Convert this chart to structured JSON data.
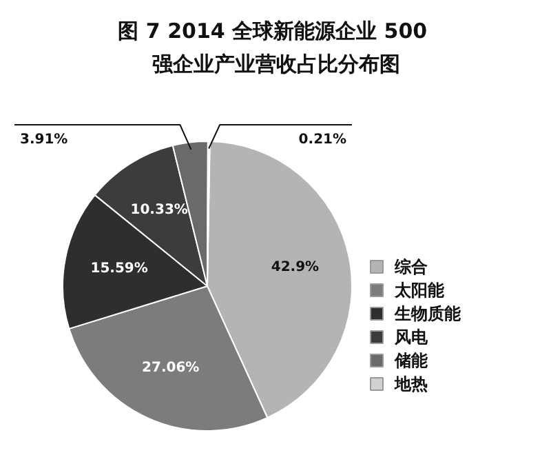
{
  "chart_data": {
    "type": "pie",
    "title": "图 7  2014 全球新能源企业 500 强企业产业营收占比分布图",
    "categories": [
      "综合",
      "太阳能",
      "生物质能",
      "风电",
      "储能",
      "地热"
    ],
    "values": [
      42.9,
      27.06,
      15.59,
      10.33,
      3.91,
      0.21
    ],
    "value_labels": [
      "42.9%",
      "27.06%",
      "15.59%",
      "10.33%",
      "3.91%",
      "0.21%"
    ],
    "colors": [
      "#b4b4b4",
      "#7c7c7c",
      "#2e2e2e",
      "#3c3c3c",
      "#6a6a6a",
      "#d0d0d0"
    ],
    "legend": "right"
  }
}
